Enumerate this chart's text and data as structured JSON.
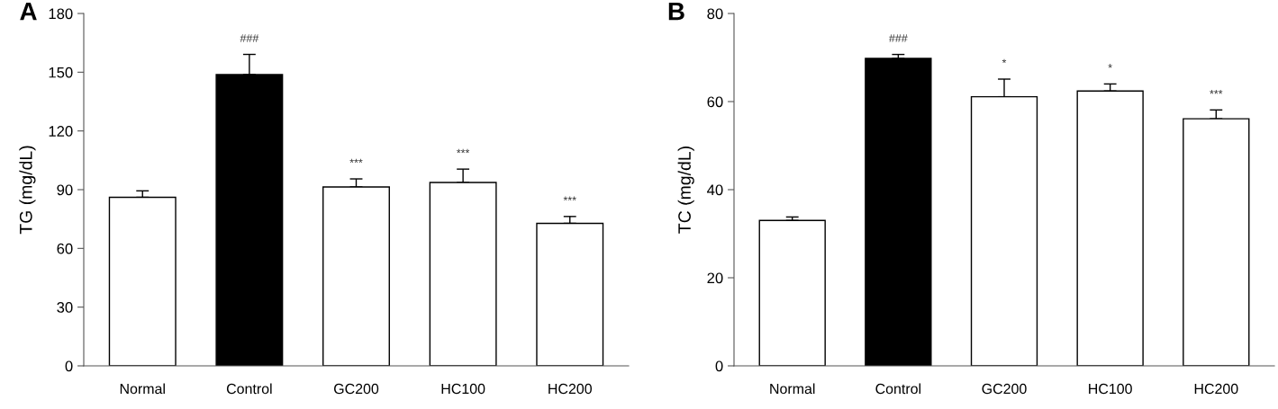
{
  "chart_data": [
    {
      "type": "bar",
      "title": "A",
      "ylabel": "TG (mg/dL)",
      "categories": [
        "Normal",
        "Control",
        "GC200",
        "HC100",
        "HC200"
      ],
      "values": [
        86.1,
        148.8,
        91.4,
        93.7,
        72.8
      ],
      "colors": [
        "#ffffff",
        "#000000",
        "#ffffff",
        "#ffffff",
        "#ffffff"
      ],
      "errors": [
        [
          86.1,
          89.4
        ],
        [
          148.8,
          159.1
        ],
        [
          91.4,
          95.5
        ],
        [
          93.7,
          100.5
        ],
        [
          72.8,
          76.3
        ]
      ],
      "ylim": [
        0,
        180
      ],
      "yticks": [
        0,
        30,
        60,
        90,
        120,
        150,
        180
      ],
      "grid": false,
      "annotations": [
        {
          "text": "###",
          "x": "Control",
          "y": 159.1
        },
        {
          "text": "***",
          "x": "GC200",
          "y": 95.5
        },
        {
          "text": "***",
          "x": "HC100",
          "y": 100.5
        },
        {
          "text": "***",
          "x": "HC200",
          "y": 76.3
        }
      ]
    },
    {
      "type": "bar",
      "title": "B",
      "ylabel": "TC (mg/dL)",
      "categories": [
        "Normal",
        "Control",
        "GC200",
        "HC100",
        "HC200"
      ],
      "values": [
        33.0,
        69.8,
        61.1,
        62.4,
        56.1
      ],
      "colors": [
        "#ffffff",
        "#000000",
        "#ffffff",
        "#ffffff",
        "#ffffff"
      ],
      "errors": [
        [
          33.0,
          33.8
        ],
        [
          69.8,
          70.7
        ],
        [
          61.1,
          65.1
        ],
        [
          62.4,
          64.0
        ],
        [
          56.1,
          58.1
        ]
      ],
      "ylim": [
        0,
        80
      ],
      "yticks": [
        0,
        20,
        40,
        60,
        80
      ],
      "grid": false,
      "annotations": [
        {
          "text": "###",
          "x": "Control",
          "y": 70.7
        },
        {
          "text": "*",
          "x": "GC200",
          "y": 65.1
        },
        {
          "text": "*",
          "x": "HC100",
          "y": 64.0
        },
        {
          "text": "***",
          "x": "HC200",
          "y": 58.1
        }
      ]
    }
  ]
}
